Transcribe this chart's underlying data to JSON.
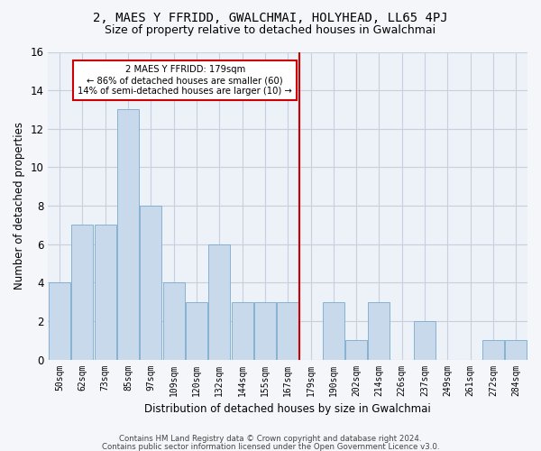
{
  "title": "2, MAES Y FFRIDD, GWALCHMAI, HOLYHEAD, LL65 4PJ",
  "subtitle": "Size of property relative to detached houses in Gwalchmai",
  "xlabel": "Distribution of detached houses by size in Gwalchmai",
  "ylabel": "Number of detached properties",
  "categories": [
    "50sqm",
    "62sqm",
    "73sqm",
    "85sqm",
    "97sqm",
    "109sqm",
    "120sqm",
    "132sqm",
    "144sqm",
    "155sqm",
    "167sqm",
    "179sqm",
    "190sqm",
    "202sqm",
    "214sqm",
    "226sqm",
    "237sqm",
    "249sqm",
    "261sqm",
    "272sqm",
    "284sqm"
  ],
  "values": [
    4,
    7,
    7,
    13,
    8,
    4,
    3,
    6,
    3,
    3,
    3,
    0,
    3,
    1,
    3,
    0,
    2,
    0,
    0,
    1,
    1
  ],
  "bar_color": "#c9d9ec",
  "bar_edge_color": "#7aaace",
  "vline_color": "#cc0000",
  "annotation_text": "2 MAES Y FFRIDD: 179sqm\n← 86% of detached houses are smaller (60)\n14% of semi-detached houses are larger (10) →",
  "annotation_box_color": "#cc0000",
  "ylim": [
    0,
    16
  ],
  "yticks": [
    0,
    2,
    4,
    6,
    8,
    10,
    12,
    14,
    16
  ],
  "grid_color": "#c8d0e0",
  "bg_color": "#edf1f8",
  "fig_color": "#f5f6fa",
  "footer1": "Contains HM Land Registry data © Crown copyright and database right 2024.",
  "footer2": "Contains public sector information licensed under the Open Government Licence v3.0."
}
